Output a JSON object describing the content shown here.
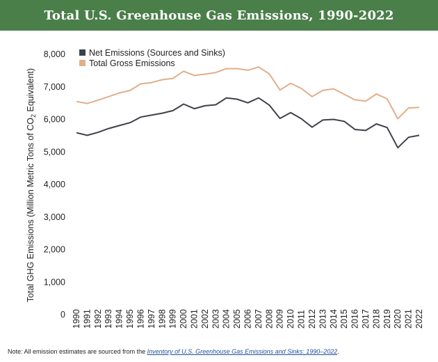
{
  "chart_data": {
    "type": "line",
    "title": "Total U.S. Greenhouse Gas Emissions, 1990-2022",
    "ylabel_prefix": "Total GHG Emissions (Million Metric Tons of CO",
    "ylabel_sub": "2",
    "ylabel_suffix": " Equivalent)",
    "ylim": [
      0,
      8000
    ],
    "yticks": [
      "0",
      "1,000",
      "2,000",
      "3,000",
      "4,000",
      "5,000",
      "6,000",
      "7,000",
      "8,000"
    ],
    "ytick_values": [
      0,
      1000,
      2000,
      3000,
      4000,
      5000,
      6000,
      7000,
      8000
    ],
    "x": [
      "1990",
      "1991",
      "1992",
      "1993",
      "1994",
      "1995",
      "1996",
      "1997",
      "1998",
      "1999",
      "2000",
      "2001",
      "2002",
      "2003",
      "2004",
      "2005",
      "2006",
      "2007",
      "2008",
      "2009",
      "2010",
      "2011",
      "2012",
      "2013",
      "2014",
      "2015",
      "2016",
      "2017",
      "2018",
      "2019",
      "2020",
      "2021",
      "2022"
    ],
    "grid": false,
    "legend_position": "top-left",
    "series": [
      {
        "name": "Net Emissions (Sources and Sinks)",
        "color": "#3d4148",
        "values": [
          5590,
          5510,
          5600,
          5720,
          5810,
          5900,
          6070,
          6130,
          6190,
          6270,
          6470,
          6330,
          6420,
          6450,
          6660,
          6620,
          6510,
          6660,
          6440,
          6030,
          6210,
          6020,
          5760,
          5980,
          6000,
          5940,
          5690,
          5660,
          5860,
          5750,
          5130,
          5450,
          5510
        ]
      },
      {
        "name": "Total Gross Emissions",
        "color": "#e1ae8a",
        "values": [
          6550,
          6490,
          6590,
          6700,
          6810,
          6890,
          7090,
          7130,
          7220,
          7260,
          7480,
          7350,
          7390,
          7440,
          7560,
          7560,
          7510,
          7610,
          7400,
          6900,
          7110,
          6950,
          6700,
          6890,
          6940,
          6770,
          6600,
          6560,
          6780,
          6630,
          6020,
          6350,
          6370
        ]
      }
    ]
  },
  "note": {
    "prefix": "Note: All emission estimates are sourced from the ",
    "link_text": "Inventory of U.S. Greenhouse Gas Emissions and Sinks: 1990–2022",
    "suffix": "."
  }
}
